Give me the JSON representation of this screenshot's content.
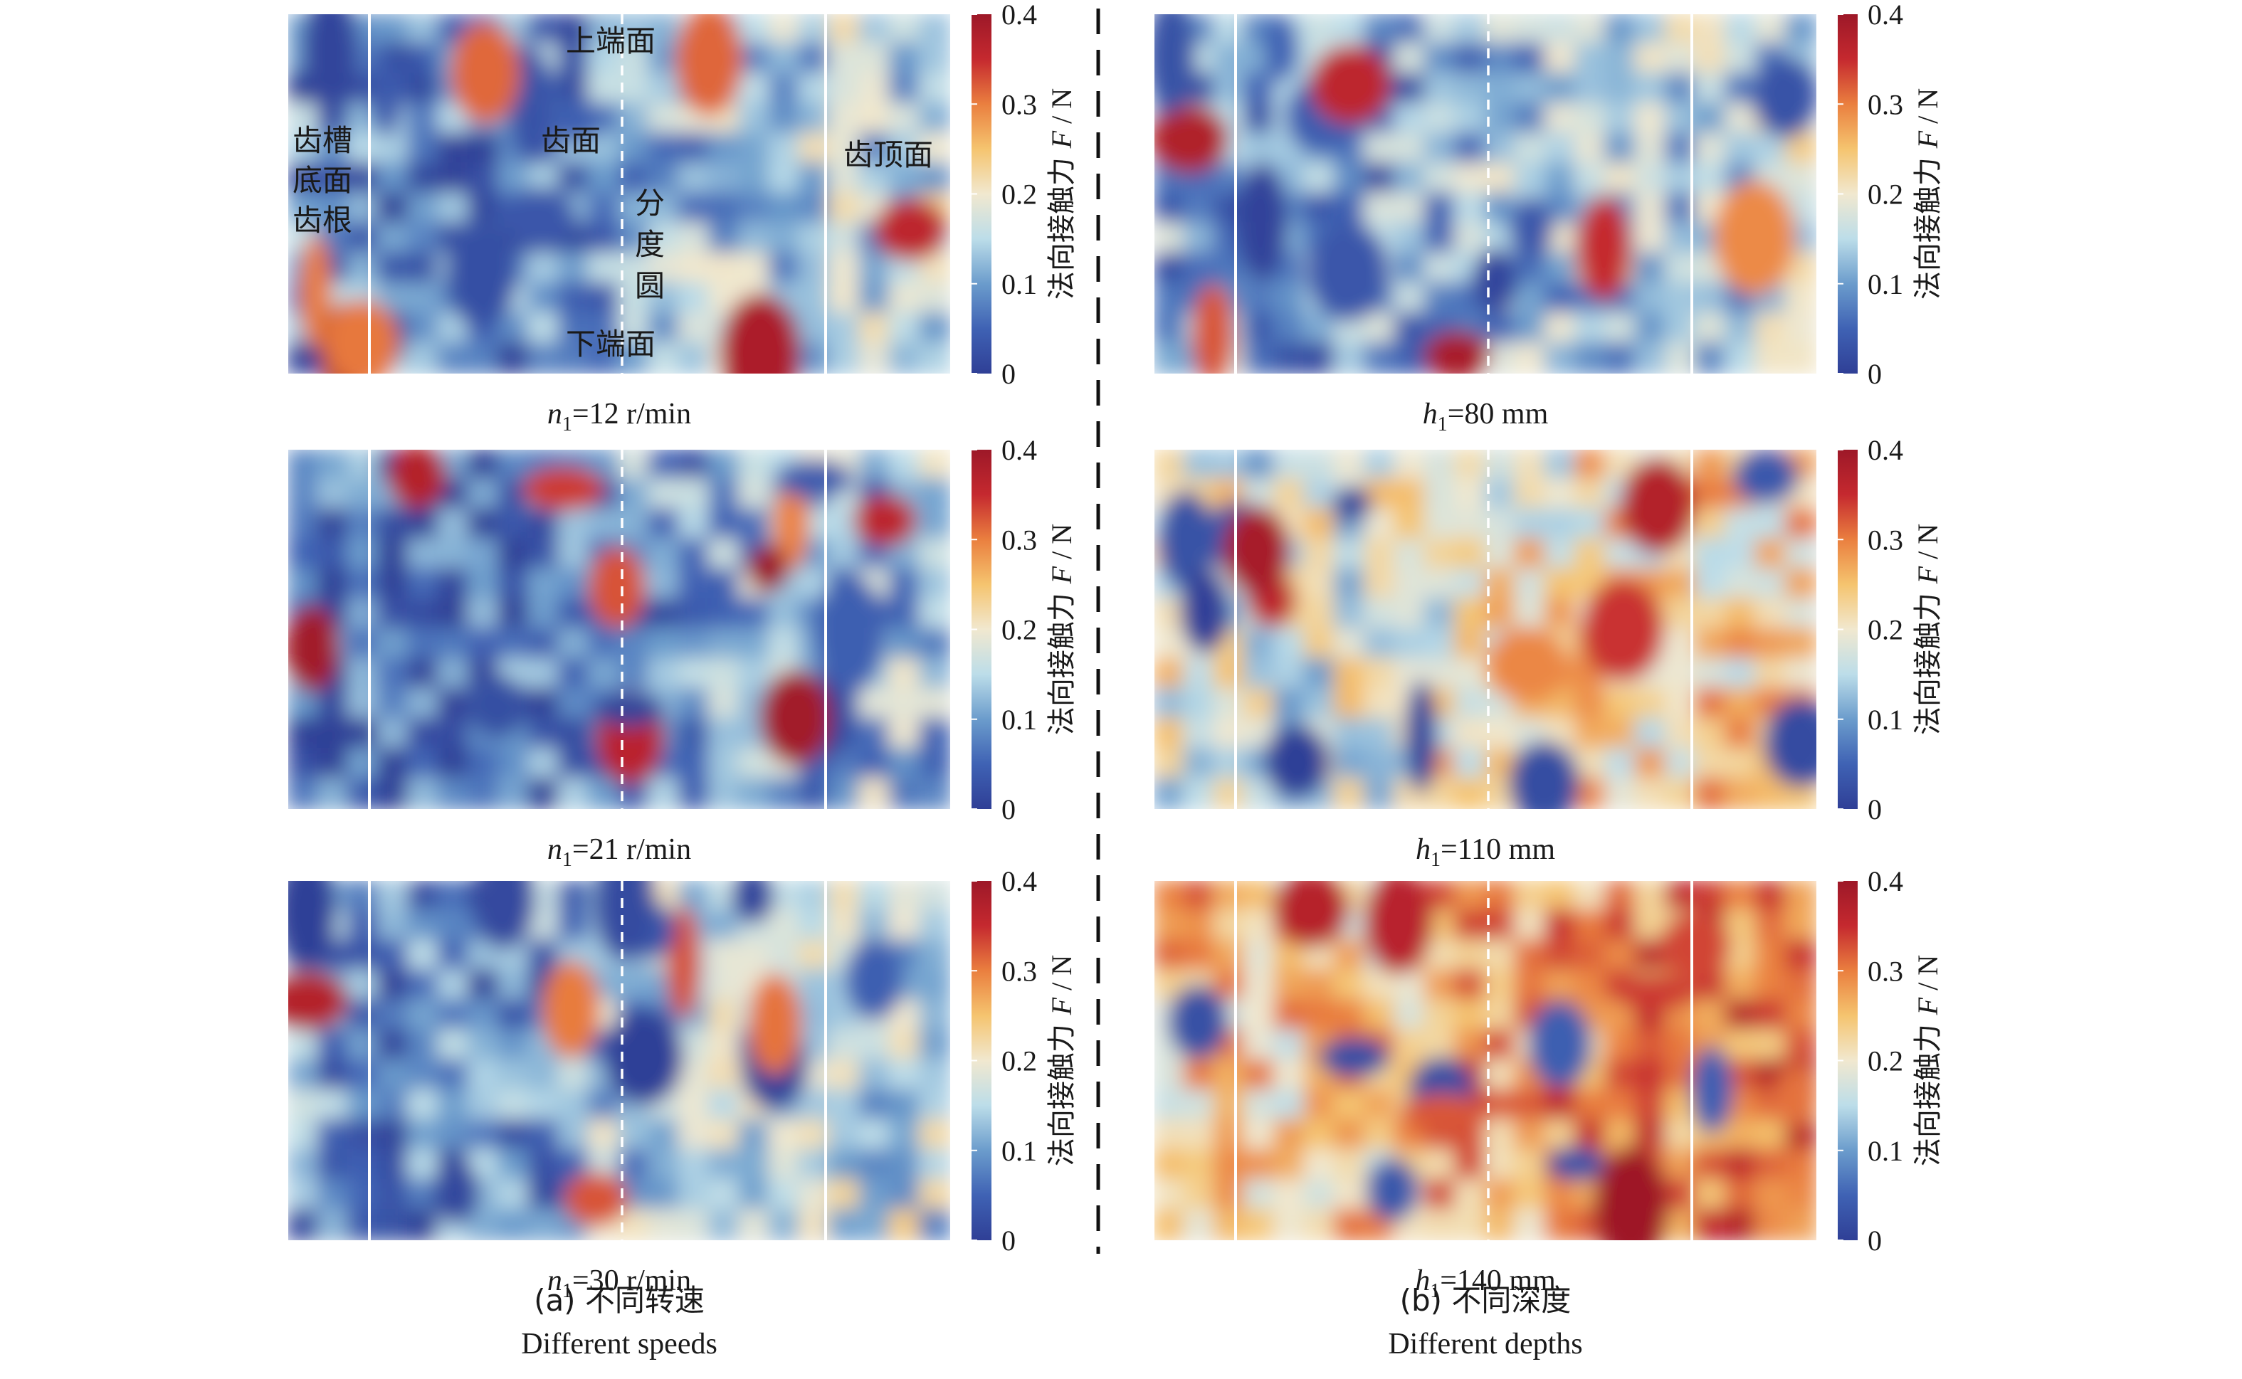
{
  "colors": {
    "colormap": [
      "#2f3f96",
      "#3f62b4",
      "#6b9ccc",
      "#bcdde9",
      "#f1e8cf",
      "#f5c46f",
      "#ea7f3f",
      "#c5292f",
      "#9d1828"
    ],
    "zone_line": "#ffffff",
    "divider": "#111111",
    "text": "#1a1a1a"
  },
  "colorbar": {
    "ticks": [
      "0",
      "0.1",
      "0.2",
      "0.3",
      "0.4"
    ],
    "label_cn": "法向接触力 ",
    "label_var": "F",
    "label_unit": " / N"
  },
  "annotations": {
    "top_face": "上端面",
    "bottom_face": "下端面",
    "tooth_flank": "齿面",
    "tooth_top": "齿顶面",
    "root_lines": [
      "齿槽",
      "底面",
      "齿根"
    ],
    "pitch_circle": [
      "分",
      "度",
      "圆"
    ]
  },
  "panels": [
    {
      "group": "a",
      "sym": "n",
      "sub": "1",
      "value": "=12 r/min",
      "level": 0.28
    },
    {
      "group": "a",
      "sym": "n",
      "sub": "1",
      "value": "=21 r/min",
      "level": 0.22
    },
    {
      "group": "a",
      "sym": "n",
      "sub": "1",
      "value": "=30 r/min",
      "level": 0.3
    },
    {
      "group": "b",
      "sym": "h",
      "sub": "1",
      "value": "=80 mm",
      "level": 0.3
    },
    {
      "group": "b",
      "sym": "h",
      "sub": "1",
      "value": "=110 mm",
      "level": 0.5
    },
    {
      "group": "b",
      "sym": "h",
      "sub": "1",
      "value": "=140 mm",
      "level": 0.66
    }
  ],
  "captions": {
    "a_cn": "(a) 不同转速",
    "a_en": "Different speeds",
    "b_cn": "(b) 不同深度",
    "b_en": "Different depths"
  },
  "chart_data": {
    "type": "heatmap",
    "description_series": [
      {
        "name": "n1=12 r/min",
        "mean_normal_force_N": 0.11
      },
      {
        "name": "n1=21 r/min",
        "mean_normal_force_N": 0.09
      },
      {
        "name": "n1=30 r/min",
        "mean_normal_force_N": 0.12
      },
      {
        "name": "h1=80 mm",
        "mean_normal_force_N": 0.12
      },
      {
        "name": "h1=110 mm",
        "mean_normal_force_N": 0.2
      },
      {
        "name": "h1=140 mm",
        "mean_normal_force_N": 0.27
      }
    ],
    "colorbar_range": [
      0,
      0.4
    ],
    "colorbar_ticks": [
      0,
      0.1,
      0.2,
      0.3,
      0.4
    ],
    "colorbar_label": "法向接触力 F / N",
    "zones_x": [
      "齿槽底面齿根",
      "齿面",
      "分度圆",
      "齿顶面"
    ],
    "zones_y": [
      "上端面",
      "下端面"
    ]
  }
}
